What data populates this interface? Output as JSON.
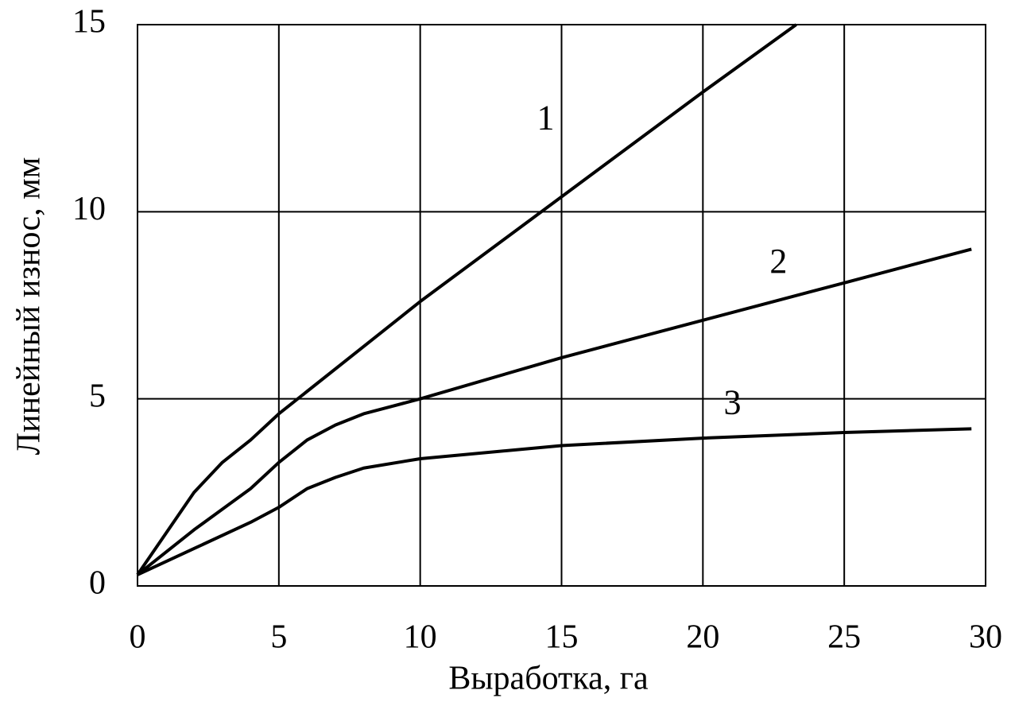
{
  "chart_data": {
    "type": "line",
    "x_label": "Выработка, га",
    "y_label": "Линейный износ, мм",
    "series": [
      {
        "name": "1",
        "color": "#000000",
        "x": [
          0,
          1,
          2,
          3,
          4,
          5,
          6,
          8,
          10,
          15,
          20,
          23.3
        ],
        "values": [
          0.3,
          1.4,
          2.5,
          3.3,
          3.9,
          4.6,
          5.2,
          6.4,
          7.6,
          10.4,
          13.2,
          15
        ]
      },
      {
        "name": "2",
        "color": "#000000",
        "x": [
          0,
          2,
          4,
          5,
          6,
          7,
          8,
          10,
          15,
          20,
          25,
          29.5
        ],
        "values": [
          0.3,
          1.5,
          2.6,
          3.3,
          3.9,
          4.3,
          4.6,
          5.0,
          6.1,
          7.1,
          8.1,
          9.0
        ]
      },
      {
        "name": "3",
        "color": "#000000",
        "x": [
          0,
          2,
          4,
          5,
          6,
          7,
          8,
          10,
          15,
          20,
          25,
          29.5
        ],
        "values": [
          0.3,
          1.0,
          1.7,
          2.1,
          2.6,
          2.9,
          3.15,
          3.4,
          3.75,
          3.95,
          4.1,
          4.2
        ]
      }
    ],
    "xlim": [
      0,
      30
    ],
    "xticks": [
      0,
      5,
      10,
      15,
      20,
      25,
      30
    ],
    "ylim": [
      0,
      15
    ],
    "yticks": [
      0,
      5,
      10,
      15
    ],
    "grid": true
  }
}
